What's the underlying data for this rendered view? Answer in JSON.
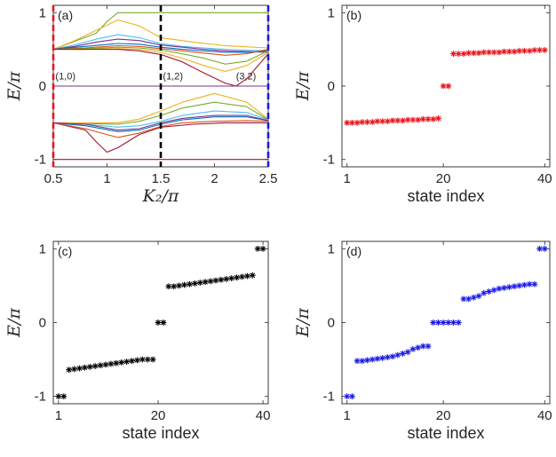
{
  "chart_data": [
    {
      "panel": "(a)",
      "type": "line",
      "xlabel": "K_2/π",
      "ylabel": "E/π",
      "xlim": [
        0.5,
        2.5
      ],
      "ylim": [
        -1.1,
        1.1
      ],
      "xticks": [
        0.5,
        1,
        1.5,
        2,
        2.5
      ],
      "xtick_labels": [
        "0.5",
        "1",
        "1.5",
        "2",
        "2.5"
      ],
      "yticks": [
        -1,
        0,
        1
      ],
      "ytick_labels": [
        "-1",
        "0",
        "1"
      ],
      "annotations": [
        {
          "text": "(1,0)",
          "x": 0.52,
          "y": 0.09
        },
        {
          "text": "(1,2)",
          "x": 1.52,
          "y": 0.09
        },
        {
          "text": "(3,2)",
          "x": 2.2,
          "y": 0.09
        }
      ],
      "vlines": [
        {
          "x": 0.5,
          "color": "#e8141c"
        },
        {
          "x": 1.5,
          "color": "#000000"
        },
        {
          "x": 2.5,
          "color": "#1a1ae6"
        }
      ],
      "series": [
        {
          "color": "#77ac30",
          "x": [
            0.5,
            0.9,
            1.0,
            1.1,
            1.3,
            1.5,
            2.0,
            2.5
          ],
          "y": [
            0.5,
            0.72,
            0.88,
            1.0,
            1.0,
            1.0,
            1.0,
            1.0
          ]
        },
        {
          "color": "#edb120",
          "x": [
            0.5,
            0.7,
            0.9,
            1.1,
            1.3,
            1.5,
            1.8,
            2.1,
            2.5
          ],
          "y": [
            0.5,
            0.62,
            0.76,
            0.9,
            0.82,
            0.66,
            0.6,
            0.55,
            0.52
          ]
        },
        {
          "color": "#4dbeee",
          "x": [
            0.5,
            0.7,
            0.9,
            1.1,
            1.3,
            1.5,
            1.7,
            1.9,
            2.1,
            2.3,
            2.5
          ],
          "y": [
            0.5,
            0.56,
            0.64,
            0.7,
            0.66,
            0.58,
            0.54,
            0.52,
            0.5,
            0.49,
            0.48
          ]
        },
        {
          "color": "#7e2f8e",
          "x": [
            0.5,
            0.7,
            0.9,
            1.1,
            1.3,
            1.5,
            1.7,
            1.9,
            2.1,
            2.3,
            2.5
          ],
          "y": [
            0.5,
            0.54,
            0.6,
            0.64,
            0.62,
            0.56,
            0.53,
            0.5,
            0.48,
            0.47,
            0.46
          ]
        },
        {
          "color": "#0072bd",
          "x": [
            0.5,
            0.8,
            1.1,
            1.3,
            1.5,
            1.7,
            1.9,
            2.1,
            2.3,
            2.5
          ],
          "y": [
            0.5,
            0.54,
            0.58,
            0.57,
            0.53,
            0.5,
            0.48,
            0.46,
            0.46,
            0.48
          ]
        },
        {
          "color": "#d95319",
          "x": [
            0.5,
            0.8,
            1.1,
            1.3,
            1.5,
            1.7,
            1.9,
            2.1,
            2.3,
            2.5
          ],
          "y": [
            0.5,
            0.52,
            0.55,
            0.54,
            0.51,
            0.48,
            0.45,
            0.42,
            0.44,
            0.5
          ]
        },
        {
          "color": "#77ac30",
          "x": [
            0.5,
            0.8,
            1.1,
            1.3,
            1.5,
            1.7,
            1.9,
            2.1,
            2.3,
            2.5
          ],
          "y": [
            0.5,
            0.51,
            0.53,
            0.52,
            0.49,
            0.44,
            0.38,
            0.3,
            0.34,
            0.48
          ]
        },
        {
          "color": "#edb120",
          "x": [
            0.5,
            0.8,
            1.1,
            1.3,
            1.5,
            1.7,
            1.9,
            2.1,
            2.3,
            2.5
          ],
          "y": [
            0.5,
            0.5,
            0.51,
            0.5,
            0.46,
            0.38,
            0.28,
            0.2,
            0.28,
            0.46
          ]
        },
        {
          "color": "#a2142f",
          "x": [
            0.5,
            0.8,
            1.1,
            1.3,
            1.5,
            1.7,
            1.9,
            2.1,
            2.2,
            2.3,
            2.5
          ],
          "y": [
            0.5,
            0.5,
            0.5,
            0.48,
            0.43,
            0.33,
            0.18,
            0.04,
            0.0,
            0.1,
            0.44
          ]
        },
        {
          "color": "#7e2f8e",
          "x": [
            0.5,
            1.0,
            1.5,
            2.0,
            2.5
          ],
          "y": [
            0.0,
            0.0,
            0.0,
            0.0,
            0.0
          ]
        },
        {
          "color": "#a2142f",
          "x": [
            0.5,
            0.8,
            0.9,
            1.0,
            1.1,
            1.3,
            1.5,
            1.8,
            2.1,
            2.5
          ],
          "y": [
            -0.5,
            -0.6,
            -0.76,
            -0.9,
            -0.84,
            -0.66,
            -0.56,
            -0.52,
            -0.5,
            -0.5
          ]
        },
        {
          "color": "#d95319",
          "x": [
            0.5,
            0.8,
            1.1,
            1.3,
            1.5,
            1.7,
            2.0,
            2.3,
            2.5
          ],
          "y": [
            -0.5,
            -0.58,
            -0.7,
            -0.64,
            -0.55,
            -0.5,
            -0.48,
            -0.47,
            -0.48
          ]
        },
        {
          "color": "#0072bd",
          "x": [
            0.5,
            0.8,
            1.1,
            1.3,
            1.5,
            1.7,
            2.0,
            2.3,
            2.5
          ],
          "y": [
            -0.5,
            -0.54,
            -0.62,
            -0.6,
            -0.52,
            -0.46,
            -0.42,
            -0.42,
            -0.47
          ]
        },
        {
          "color": "#4dbeee",
          "x": [
            0.5,
            0.8,
            1.1,
            1.3,
            1.5,
            1.7,
            2.0,
            2.3,
            2.5
          ],
          "y": [
            -0.5,
            -0.52,
            -0.56,
            -0.54,
            -0.48,
            -0.4,
            -0.34,
            -0.36,
            -0.46
          ]
        },
        {
          "color": "#77ac30",
          "x": [
            0.5,
            0.8,
            1.1,
            1.3,
            1.5,
            1.7,
            2.0,
            2.3,
            2.5
          ],
          "y": [
            -0.5,
            -0.51,
            -0.52,
            -0.48,
            -0.4,
            -0.3,
            -0.22,
            -0.28,
            -0.46
          ]
        },
        {
          "color": "#edb120",
          "x": [
            0.5,
            0.8,
            1.1,
            1.3,
            1.5,
            1.7,
            2.0,
            2.3,
            2.5
          ],
          "y": [
            -0.5,
            -0.5,
            -0.5,
            -0.45,
            -0.34,
            -0.22,
            -0.1,
            -0.22,
            -0.45
          ]
        },
        {
          "color": "#7e2f8e",
          "x": [
            0.5,
            0.8,
            1.1,
            1.3,
            1.5,
            1.7,
            2.0,
            2.3,
            2.5
          ],
          "y": [
            -0.5,
            -0.52,
            -0.6,
            -0.58,
            -0.5,
            -0.44,
            -0.4,
            -0.4,
            -0.47
          ]
        },
        {
          "color": "#a2142f",
          "x": [
            0.5,
            1.0,
            1.5,
            2.0,
            2.5
          ],
          "y": [
            -1.0,
            -1.0,
            -1.0,
            -1.0,
            -1.0
          ]
        }
      ]
    },
    {
      "panel": "(b)",
      "type": "scatter",
      "marker_color": "#e8141c",
      "xlabel": "state index",
      "ylabel": "E/π",
      "xlim": [
        0,
        41
      ],
      "ylim": [
        -1.1,
        1.1
      ],
      "xticks": [
        1,
        20,
        40
      ],
      "xtick_labels": [
        "1",
        "20",
        "40"
      ],
      "yticks": [
        -1,
        0,
        1
      ],
      "ytick_labels": [
        "-1",
        "0",
        "1"
      ],
      "x": [
        1,
        2,
        3,
        4,
        5,
        6,
        7,
        8,
        9,
        10,
        11,
        12,
        13,
        14,
        15,
        16,
        17,
        18,
        19,
        20,
        21,
        22,
        23,
        24,
        25,
        26,
        27,
        28,
        29,
        30,
        31,
        32,
        33,
        34,
        35,
        36,
        37,
        38,
        39,
        40
      ],
      "y": [
        -0.5,
        -0.5,
        -0.5,
        -0.49,
        -0.49,
        -0.49,
        -0.48,
        -0.48,
        -0.48,
        -0.47,
        -0.47,
        -0.47,
        -0.46,
        -0.46,
        -0.46,
        -0.45,
        -0.45,
        -0.45,
        -0.44,
        0.0,
        0.0,
        0.44,
        0.44,
        0.44,
        0.45,
        0.45,
        0.45,
        0.46,
        0.46,
        0.46,
        0.46,
        0.47,
        0.47,
        0.47,
        0.48,
        0.48,
        0.48,
        0.49,
        0.49,
        0.49
      ]
    },
    {
      "panel": "(c)",
      "type": "scatter",
      "marker_color": "#000000",
      "xlabel": "state index",
      "ylabel": "E/π",
      "xlim": [
        0,
        41
      ],
      "ylim": [
        -1.1,
        1.1
      ],
      "xticks": [
        1,
        20,
        40
      ],
      "xtick_labels": [
        "1",
        "20",
        "40"
      ],
      "yticks": [
        -1,
        0,
        1
      ],
      "ytick_labels": [
        "-1",
        "0",
        "1"
      ],
      "x": [
        1,
        2,
        3,
        4,
        5,
        6,
        7,
        8,
        9,
        10,
        11,
        12,
        13,
        14,
        15,
        16,
        17,
        18,
        19,
        20,
        21,
        22,
        23,
        24,
        25,
        26,
        27,
        28,
        29,
        30,
        31,
        32,
        33,
        34,
        35,
        36,
        37,
        38,
        39,
        40
      ],
      "y": [
        -1.0,
        -1.0,
        -0.64,
        -0.63,
        -0.62,
        -0.61,
        -0.6,
        -0.59,
        -0.58,
        -0.57,
        -0.56,
        -0.55,
        -0.54,
        -0.53,
        -0.52,
        -0.51,
        -0.5,
        -0.5,
        -0.5,
        0.0,
        0.0,
        0.49,
        0.49,
        0.5,
        0.51,
        0.52,
        0.53,
        0.54,
        0.55,
        0.56,
        0.57,
        0.58,
        0.59,
        0.6,
        0.61,
        0.62,
        0.63,
        0.64,
        1.0,
        1.0
      ]
    },
    {
      "panel": "(d)",
      "type": "scatter",
      "marker_color": "#1a1ae6",
      "xlabel": "state index",
      "ylabel": "E/π",
      "xlim": [
        0,
        41
      ],
      "ylim": [
        -1.1,
        1.1
      ],
      "xticks": [
        1,
        20,
        40
      ],
      "xtick_labels": [
        "1",
        "20",
        "40"
      ],
      "yticks": [
        -1,
        0,
        1
      ],
      "ytick_labels": [
        "-1",
        "0",
        "1"
      ],
      "x": [
        1,
        2,
        3,
        4,
        5,
        6,
        7,
        8,
        9,
        10,
        11,
        12,
        13,
        14,
        15,
        16,
        17,
        18,
        19,
        20,
        21,
        22,
        23,
        24,
        25,
        26,
        27,
        28,
        29,
        30,
        31,
        32,
        33,
        34,
        35,
        36,
        37,
        38,
        39,
        40
      ],
      "y": [
        -1.0,
        -1.0,
        -0.52,
        -0.52,
        -0.51,
        -0.5,
        -0.49,
        -0.48,
        -0.47,
        -0.46,
        -0.44,
        -0.42,
        -0.4,
        -0.36,
        -0.34,
        -0.32,
        -0.32,
        0.0,
        0.0,
        0.0,
        0.0,
        0.0,
        0.0,
        0.32,
        0.32,
        0.34,
        0.36,
        0.4,
        0.42,
        0.44,
        0.46,
        0.47,
        0.48,
        0.49,
        0.5,
        0.51,
        0.52,
        0.52,
        1.0,
        1.0
      ]
    }
  ]
}
